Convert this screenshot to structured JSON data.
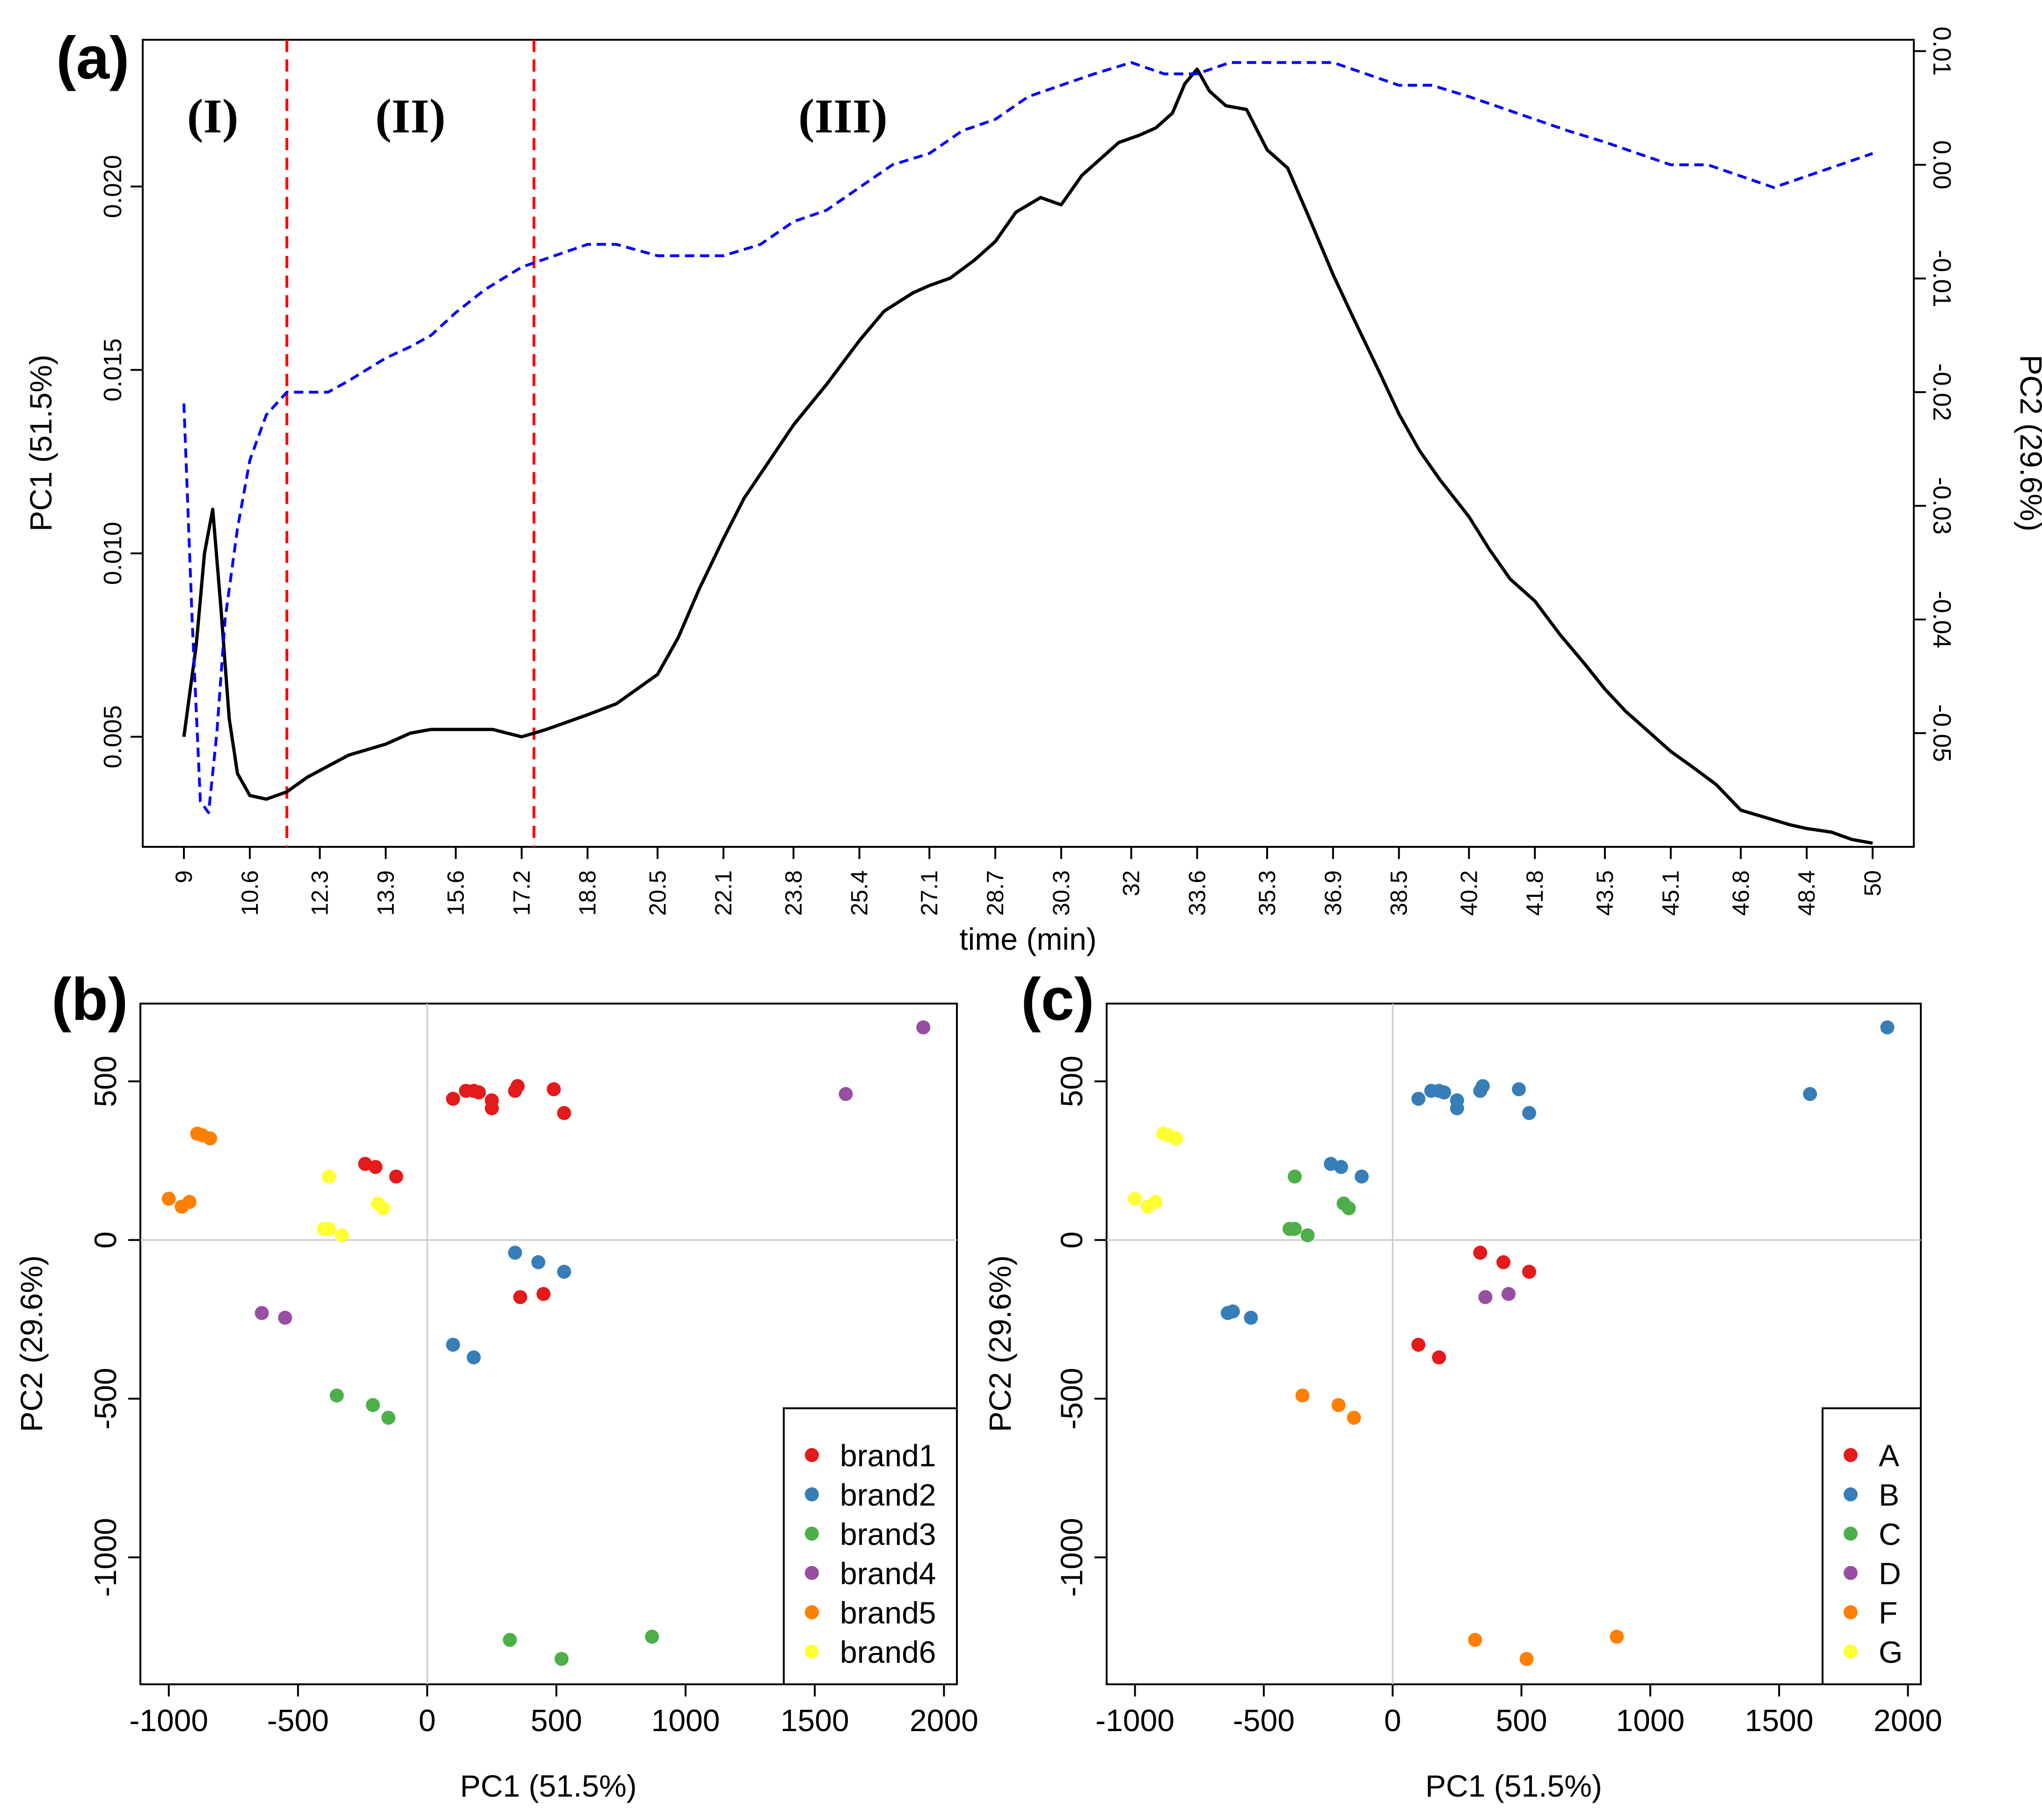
{
  "figure": {
    "panel_a_letter": "(a)",
    "panel_b_letter": "(b)",
    "panel_c_letter": "(c)"
  },
  "chart_data": [
    {
      "id": "a",
      "type": "line",
      "xlabel": "time (min)",
      "ylabel_left": "PC1 (51.5%)",
      "ylabel_right": "PC2 (29.6%)",
      "xlim": [
        8.0,
        51.0
      ],
      "ylim_left": [
        0.002,
        0.024
      ],
      "ylim_right": [
        -0.06,
        0.011
      ],
      "x_ticks": [
        "9",
        "10.6",
        "12.3",
        "13.9",
        "15.6",
        "17.2",
        "18.8",
        "20.5",
        "22.1",
        "23.8",
        "25.4",
        "27.1",
        "28.7",
        "30.3",
        "32",
        "33.6",
        "35.3",
        "36.9",
        "38.5",
        "40.2",
        "41.8",
        "43.5",
        "45.1",
        "46.8",
        "48.4",
        "50"
      ],
      "y_ticks_left": [
        "0.005",
        "0.010",
        "0.015",
        "0.020"
      ],
      "y_ticks_right": [
        "-0.05",
        "-0.04",
        "-0.03",
        "-0.02",
        "-0.01",
        "0.00",
        "0.01"
      ],
      "vlines": [
        11.5,
        17.5
      ],
      "vline_color": "#ff0000",
      "regions": [
        {
          "label": "(I)",
          "x": 9.7
        },
        {
          "label": "(II)",
          "x": 14.5
        },
        {
          "label": "(III)",
          "x": 25.0
        }
      ],
      "series": [
        {
          "name": "PC1",
          "axis": "left",
          "color": "#000000",
          "style": "solid",
          "x": [
            9.0,
            9.3,
            9.5,
            9.7,
            9.9,
            10.1,
            10.3,
            10.6,
            11.0,
            11.5,
            12.0,
            12.5,
            13.0,
            13.9,
            14.5,
            15.0,
            15.6,
            16.5,
            17.2,
            17.8,
            18.8,
            19.5,
            20.5,
            21.0,
            21.5,
            22.1,
            22.6,
            23.2,
            23.8,
            24.6,
            25.4,
            26.0,
            26.7,
            27.1,
            27.6,
            28.2,
            28.7,
            29.2,
            29.8,
            30.3,
            30.8,
            31.3,
            31.7,
            32.2,
            32.6,
            33.0,
            33.3,
            33.6,
            33.9,
            34.3,
            34.8,
            35.3,
            35.8,
            36.3,
            36.9,
            37.4,
            38.0,
            38.5,
            39.0,
            39.5,
            40.2,
            40.7,
            41.2,
            41.8,
            42.4,
            43.0,
            43.5,
            44.0,
            44.6,
            45.1,
            45.6,
            46.2,
            46.8,
            47.4,
            48.0,
            48.4,
            49.0,
            49.5,
            50.0
          ],
          "y": [
            0.005,
            0.0075,
            0.01,
            0.0112,
            0.0085,
            0.0055,
            0.004,
            0.0034,
            0.0033,
            0.0035,
            0.0039,
            0.0042,
            0.0045,
            0.0048,
            0.0051,
            0.0052,
            0.0052,
            0.0052,
            0.005,
            0.0052,
            0.0056,
            0.0059,
            0.0067,
            0.0077,
            0.009,
            0.0104,
            0.0115,
            0.0125,
            0.0135,
            0.0146,
            0.0158,
            0.0166,
            0.0171,
            0.0173,
            0.0175,
            0.018,
            0.0185,
            0.0193,
            0.0197,
            0.0195,
            0.0203,
            0.0208,
            0.0212,
            0.0214,
            0.0216,
            0.022,
            0.0228,
            0.0232,
            0.0226,
            0.0222,
            0.0221,
            0.021,
            0.0205,
            0.0192,
            0.0176,
            0.0164,
            0.015,
            0.0138,
            0.0128,
            0.012,
            0.011,
            0.0101,
            0.0093,
            0.0087,
            0.0078,
            0.007,
            0.0063,
            0.0057,
            0.0051,
            0.0046,
            0.0042,
            0.0037,
            0.003,
            0.0028,
            0.0026,
            0.0025,
            0.0024,
            0.0022,
            0.0021
          ]
        },
        {
          "name": "PC2",
          "axis": "right",
          "color": "#0000ff",
          "style": "dashed",
          "x": [
            9.0,
            9.2,
            9.4,
            9.6,
            9.8,
            10.0,
            10.3,
            10.6,
            11.0,
            11.5,
            12.0,
            12.5,
            13.0,
            13.9,
            14.5,
            15.0,
            15.6,
            16.3,
            17.2,
            18.0,
            18.8,
            19.5,
            20.5,
            21.3,
            22.1,
            23.0,
            23.8,
            24.6,
            25.4,
            26.2,
            27.1,
            27.9,
            28.7,
            29.5,
            30.3,
            31.1,
            32.0,
            32.8,
            33.6,
            34.4,
            35.3,
            36.1,
            36.9,
            37.7,
            38.5,
            39.3,
            40.2,
            41.0,
            41.8,
            42.6,
            43.5,
            44.3,
            45.1,
            46.0,
            46.8,
            47.6,
            48.4,
            49.2,
            50.0
          ],
          "y": [
            -0.021,
            -0.04,
            -0.056,
            -0.057,
            -0.05,
            -0.04,
            -0.032,
            -0.026,
            -0.022,
            -0.02,
            -0.02,
            -0.02,
            -0.019,
            -0.017,
            -0.016,
            -0.015,
            -0.013,
            -0.011,
            -0.009,
            -0.008,
            -0.007,
            -0.007,
            -0.008,
            -0.008,
            -0.008,
            -0.007,
            -0.005,
            -0.004,
            -0.002,
            0.0,
            0.001,
            0.003,
            0.004,
            0.006,
            0.007,
            0.008,
            0.009,
            0.008,
            0.008,
            0.009,
            0.009,
            0.009,
            0.009,
            0.008,
            0.007,
            0.007,
            0.006,
            0.005,
            0.004,
            0.003,
            0.002,
            0.001,
            0.0,
            0.0,
            -0.001,
            -0.002,
            -0.001,
            0.0,
            0.001
          ]
        }
      ]
    },
    {
      "id": "b",
      "type": "scatter",
      "xlabel": "PC1 (51.5%)",
      "ylabel": "PC2 (29.6%)",
      "xlim": [
        -1110,
        2050
      ],
      "ylim": [
        -1400,
        745
      ],
      "x_ticks": [
        "-1000",
        "-500",
        "0",
        "500",
        "1000",
        "1500",
        "2000"
      ],
      "y_ticks": [
        "-1000",
        "-500",
        "0",
        "500"
      ],
      "zero_lines": true,
      "legend_position": "bottom-right",
      "series": [
        {
          "name": "brand1",
          "color": "#e41a1c",
          "points": [
            [
              100,
              445
            ],
            [
              150,
              470
            ],
            [
              180,
              470
            ],
            [
              200,
              465
            ],
            [
              250,
              440
            ],
            [
              250,
              415
            ],
            [
              340,
              470
            ],
            [
              350,
              485
            ],
            [
              490,
              475
            ],
            [
              530,
              400
            ],
            [
              -240,
              240
            ],
            [
              -200,
              230
            ],
            [
              -120,
              200
            ],
            [
              360,
              -180
            ],
            [
              450,
              -170
            ]
          ]
        },
        {
          "name": "brand2",
          "color": "#377eb8",
          "points": [
            [
              340,
              -40
            ],
            [
              430,
              -70
            ],
            [
              530,
              -100
            ],
            [
              100,
              -330
            ],
            [
              180,
              -370
            ]
          ]
        },
        {
          "name": "brand3",
          "color": "#4daf4a",
          "points": [
            [
              -350,
              -490
            ],
            [
              -210,
              -520
            ],
            [
              -150,
              -560
            ],
            [
              320,
              -1260
            ],
            [
              520,
              -1320
            ],
            [
              870,
              -1250
            ]
          ]
        },
        {
          "name": "brand4",
          "color": "#984ea3",
          "points": [
            [
              -640,
              -230
            ],
            [
              -550,
              -245
            ],
            [
              1620,
              460
            ],
            [
              1920,
              670
            ]
          ]
        },
        {
          "name": "brand5",
          "color": "#ff7f00",
          "points": [
            [
              -1000,
              130
            ],
            [
              -950,
              105
            ],
            [
              -920,
              120
            ],
            [
              -890,
              335
            ],
            [
              -870,
              330
            ],
            [
              -840,
              320
            ]
          ]
        },
        {
          "name": "brand6",
          "color": "#ffff33",
          "points": [
            [
              -380,
              200
            ],
            [
              -400,
              35
            ],
            [
              -380,
              35
            ],
            [
              -330,
              15
            ],
            [
              -190,
              115
            ],
            [
              -170,
              100
            ]
          ]
        }
      ]
    },
    {
      "id": "c",
      "type": "scatter",
      "xlabel": "PC1 (51.5%)",
      "ylabel": "PC2 (29.6%)",
      "xlim": [
        -1110,
        2050
      ],
      "ylim": [
        -1400,
        745
      ],
      "x_ticks": [
        "-1000",
        "-500",
        "0",
        "500",
        "1000",
        "1500",
        "2000"
      ],
      "y_ticks": [
        "-1000",
        "-500",
        "0",
        "500"
      ],
      "zero_lines": true,
      "legend_position": "bottom-right",
      "series": [
        {
          "name": "A",
          "color": "#e41a1c",
          "points": [
            [
              340,
              -40
            ],
            [
              430,
              -70
            ],
            [
              530,
              -100
            ],
            [
              100,
              -330
            ],
            [
              180,
              -370
            ]
          ]
        },
        {
          "name": "B",
          "color": "#377eb8",
          "points": [
            [
              100,
              445
            ],
            [
              150,
              470
            ],
            [
              180,
              470
            ],
            [
              200,
              465
            ],
            [
              250,
              440
            ],
            [
              250,
              415
            ],
            [
              340,
              470
            ],
            [
              350,
              485
            ],
            [
              490,
              475
            ],
            [
              530,
              400
            ],
            [
              1620,
              460
            ],
            [
              1920,
              670
            ],
            [
              -640,
              -230
            ],
            [
              -620,
              -225
            ],
            [
              -550,
              -245
            ],
            [
              -240,
              240
            ],
            [
              -200,
              230
            ],
            [
              -120,
              200
            ]
          ]
        },
        {
          "name": "C",
          "color": "#4daf4a",
          "points": [
            [
              -380,
              200
            ],
            [
              -400,
              35
            ],
            [
              -380,
              35
            ],
            [
              -330,
              15
            ],
            [
              -190,
              115
            ],
            [
              -170,
              100
            ]
          ]
        },
        {
          "name": "D",
          "color": "#984ea3",
          "points": [
            [
              360,
              -180
            ],
            [
              450,
              -170
            ]
          ]
        },
        {
          "name": "F",
          "color": "#ff7f00",
          "points": [
            [
              -350,
              -490
            ],
            [
              -210,
              -520
            ],
            [
              -150,
              -560
            ],
            [
              320,
              -1260
            ],
            [
              520,
              -1320
            ],
            [
              870,
              -1250
            ]
          ]
        },
        {
          "name": "G",
          "color": "#ffff33",
          "points": [
            [
              -1000,
              130
            ],
            [
              -950,
              105
            ],
            [
              -920,
              120
            ],
            [
              -890,
              335
            ],
            [
              -870,
              330
            ],
            [
              -840,
              320
            ]
          ]
        }
      ]
    }
  ]
}
